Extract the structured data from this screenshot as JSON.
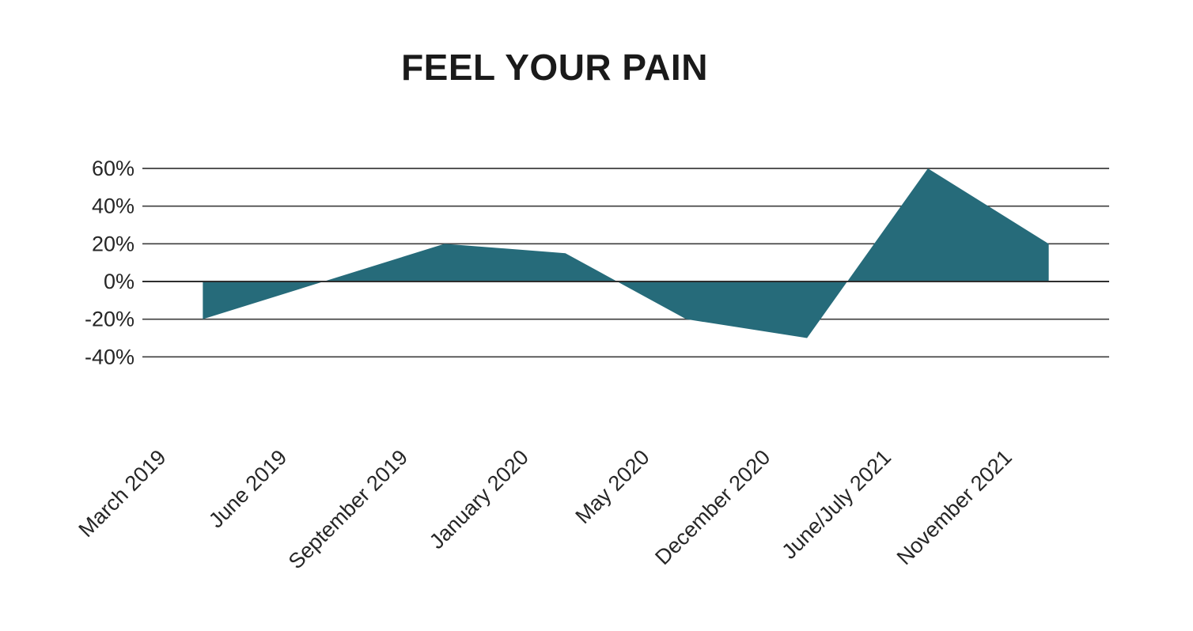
{
  "page": {
    "background_color": "#ffffff"
  },
  "chart": {
    "title_color": "#1a1a1a",
    "gridline_color": "#3d3d3d",
    "zero_axis_color": "#2e2e2e",
    "label_color": "#262626"
  },
  "chart_data": {
    "type": "area",
    "title": "FEEL YOUR PAIN",
    "categories": [
      "March 2019",
      "June 2019",
      "September 2019",
      "January 2020",
      "May 2020",
      "December 2020",
      "June/July 2021",
      "November 2021"
    ],
    "values": [
      -20,
      0,
      20,
      15,
      -20,
      -30,
      60,
      20
    ],
    "ytick_values": [
      60,
      40,
      20,
      0,
      -20,
      -40
    ],
    "ytick_labels": [
      "60%",
      "40%",
      "20%",
      "0%",
      "-20%",
      "-40%"
    ],
    "xlabel": "",
    "ylabel": "",
    "ylim": [
      -40,
      60
    ],
    "grid": "horizontal",
    "legend": "none",
    "fill_color": "#266b7a",
    "baseline_value": 0,
    "x_label_rotation_deg": -45
  }
}
